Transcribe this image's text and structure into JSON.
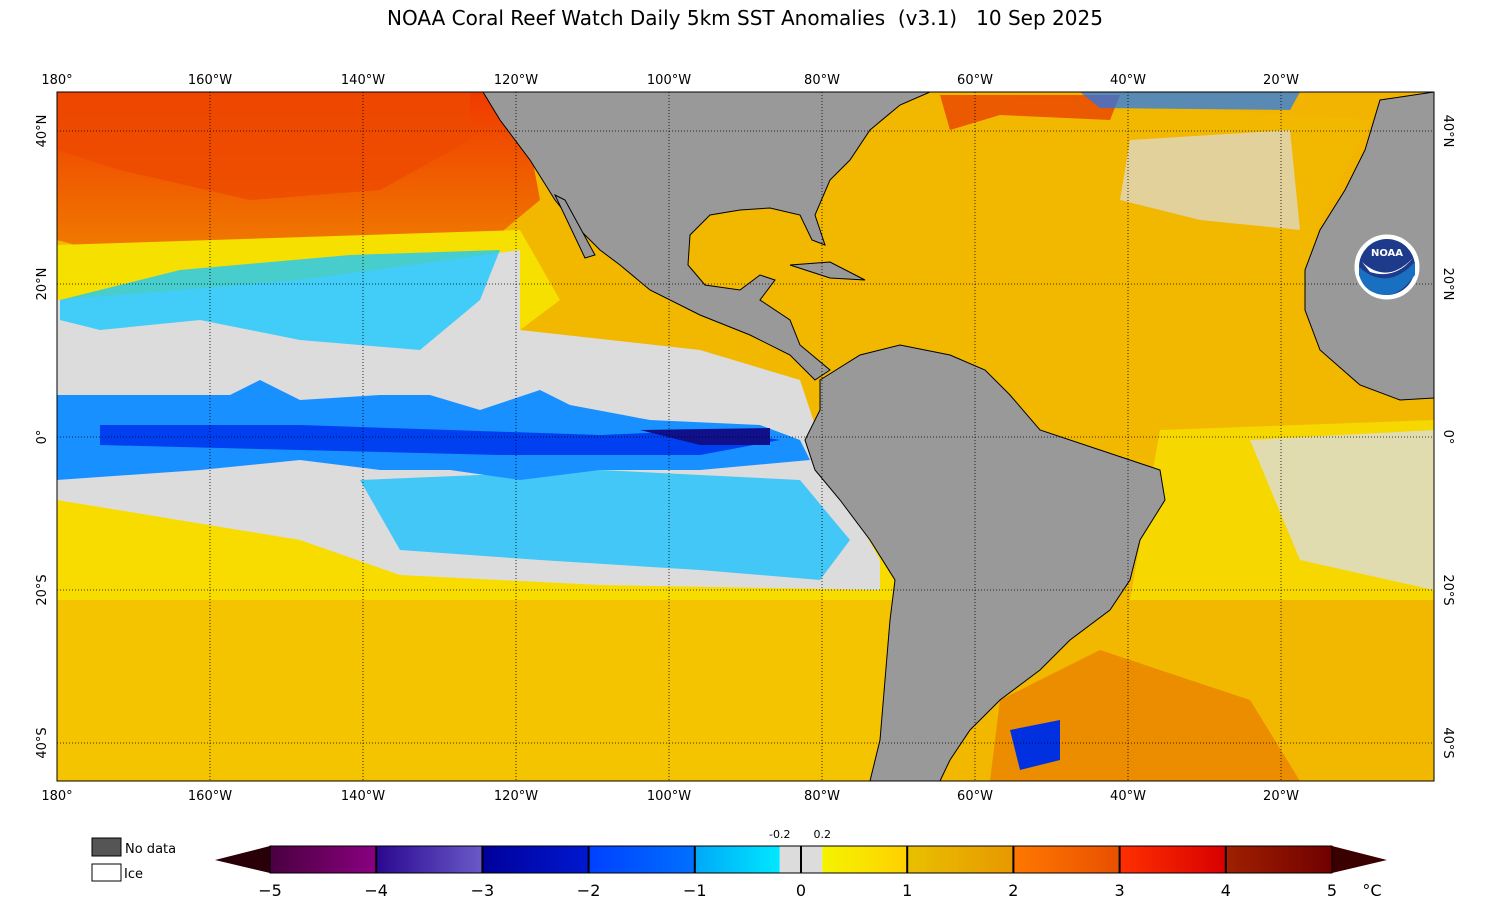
{
  "title": "NOAA Coral Reef Watch Daily 5km SST Anomalies  (v3.1)   10 Sep 2025",
  "map": {
    "lon_range": [
      -180,
      0
    ],
    "lat_range": [
      -45,
      45
    ],
    "gridlines": "dotted",
    "lon_ticks": [
      "180°",
      "160°W",
      "140°W",
      "120°W",
      "100°W",
      "80°W",
      "60°W",
      "40°W",
      "20°W"
    ],
    "lat_ticks_left": [
      "40°N",
      "20°N",
      "0°",
      "20°S",
      "40°S"
    ],
    "lat_ticks_right": [
      "40°N",
      "20°N",
      "0°",
      "20°S",
      "40°S"
    ],
    "colors": {
      "land": "#999999",
      "no_data": "#555555",
      "ice": "#ffffff"
    },
    "logo": "NOAA"
  },
  "legend": {
    "no_data_label": "No data",
    "ice_label": "Ice"
  },
  "colorbar": {
    "unit": "°C",
    "ticks": [
      "−5",
      "−4",
      "−3",
      "−2",
      "−1",
      "0",
      "1",
      "2",
      "3",
      "4",
      "5"
    ],
    "small_ticks": [
      "-0.2",
      "0.2"
    ],
    "low_extend_color": "#2a0008",
    "high_extend_color": "#3a0000",
    "segments": [
      {
        "from": -5,
        "to": -4,
        "colors": [
          "#4a0040",
          "#8a0080"
        ]
      },
      {
        "from": -4,
        "to": -3,
        "colors": [
          "#2a0890",
          "#6a5ac8"
        ]
      },
      {
        "from": -3,
        "to": -2,
        "colors": [
          "#00009a",
          "#0018d0"
        ]
      },
      {
        "from": -2,
        "to": -1,
        "colors": [
          "#0040ff",
          "#0070ff"
        ]
      },
      {
        "from": -1,
        "to": -0.2,
        "colors": [
          "#00a8f8",
          "#00e8ff"
        ]
      },
      {
        "from": -0.2,
        "to": 0.2,
        "colors": [
          "#dcdcdc",
          "#dcdcdc"
        ]
      },
      {
        "from": 0.2,
        "to": 1,
        "colors": [
          "#f4f400",
          "#ffd000"
        ]
      },
      {
        "from": 1,
        "to": 2,
        "colors": [
          "#e8c000",
          "#e89800"
        ]
      },
      {
        "from": 2,
        "to": 3,
        "colors": [
          "#ff7800",
          "#e85000"
        ]
      },
      {
        "from": 3,
        "to": 4,
        "colors": [
          "#ff3000",
          "#d80000"
        ]
      },
      {
        "from": 4,
        "to": 5,
        "colors": [
          "#a02000",
          "#700000"
        ]
      }
    ]
  }
}
